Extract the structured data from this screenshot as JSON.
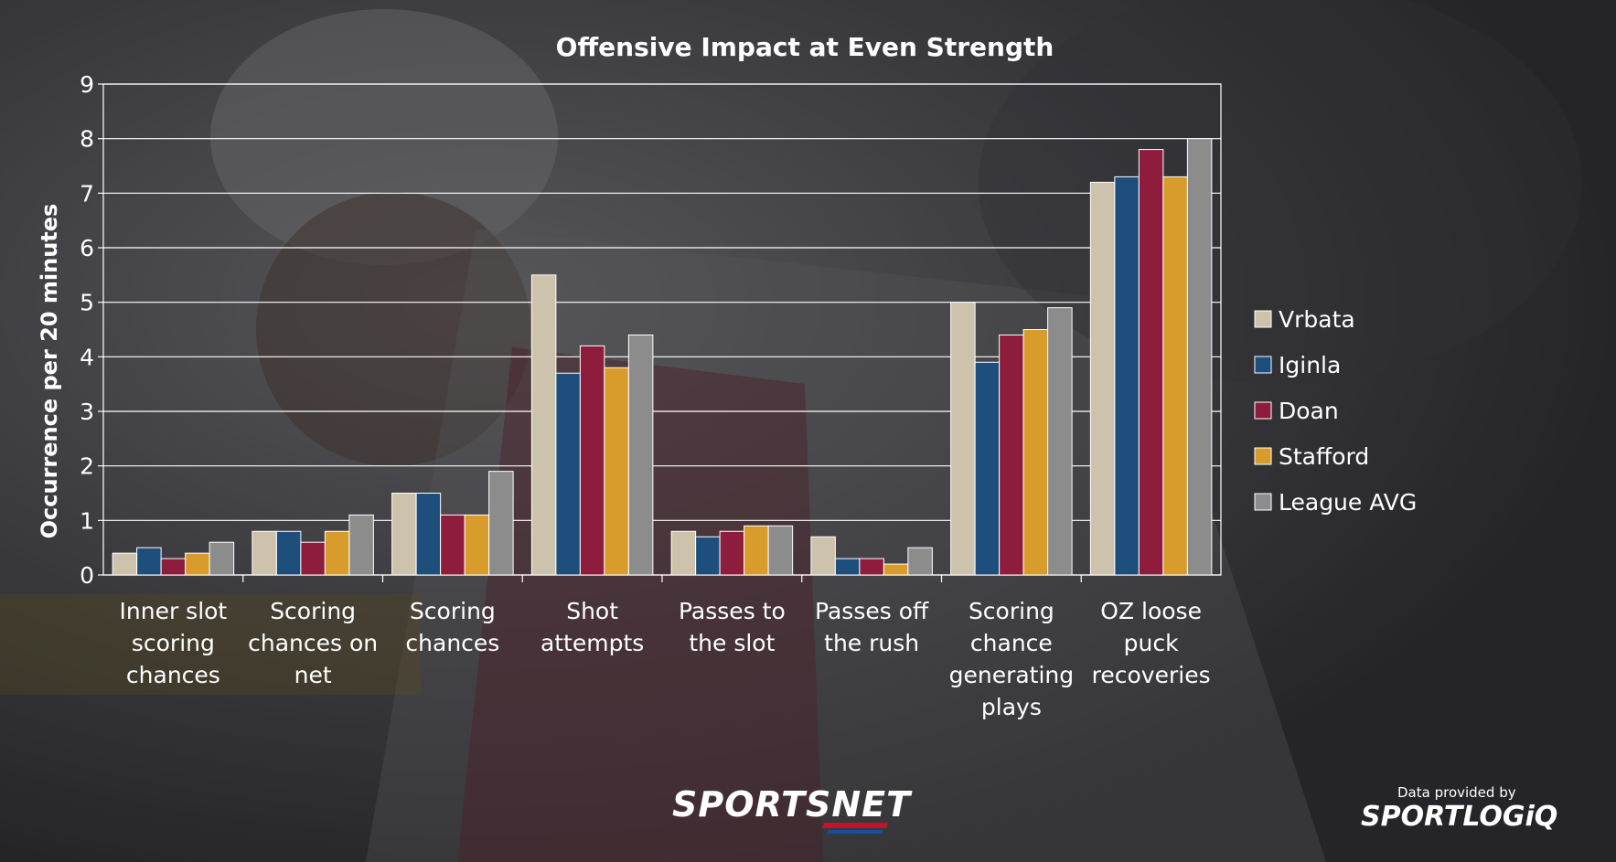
{
  "chart_data": {
    "type": "bar",
    "title": "Offensive Impact at Even Strength",
    "xlabel": "",
    "ylabel": "Occurrence per 20 minutes",
    "ylim": [
      0,
      9
    ],
    "yticks": [
      0,
      1,
      2,
      3,
      4,
      5,
      6,
      7,
      8,
      9
    ],
    "grid": true,
    "legend_position": "right",
    "categories": [
      [
        "Inner slot",
        "scoring",
        "chances"
      ],
      [
        "Scoring",
        "chances on",
        "net"
      ],
      [
        "Scoring",
        "chances"
      ],
      [
        "Shot",
        "attempts"
      ],
      [
        "Passes to",
        "the slot"
      ],
      [
        "Passes off",
        "the rush"
      ],
      [
        "Scoring",
        "chance",
        "generating",
        "plays"
      ],
      [
        "OZ loose",
        "puck",
        "recoveries"
      ]
    ],
    "series": [
      {
        "name": "Vrbata",
        "color": "#cdc3ad",
        "values": [
          0.4,
          0.8,
          1.5,
          5.5,
          0.8,
          0.7,
          5.0,
          7.2
        ]
      },
      {
        "name": "Iginla",
        "color": "#1e4f7c",
        "values": [
          0.5,
          0.8,
          1.5,
          3.7,
          0.7,
          0.3,
          3.9,
          7.3
        ]
      },
      {
        "name": "Doan",
        "color": "#8d1c3d",
        "values": [
          0.3,
          0.6,
          1.1,
          4.2,
          0.8,
          0.3,
          4.4,
          7.8
        ]
      },
      {
        "name": "Stafford",
        "color": "#d79c2b",
        "values": [
          0.4,
          0.8,
          1.1,
          3.8,
          0.9,
          0.2,
          4.5,
          7.3
        ]
      },
      {
        "name": "League AVG",
        "color": "#8c8c8c",
        "values": [
          0.6,
          1.1,
          1.9,
          4.4,
          0.9,
          0.5,
          4.9,
          8.0
        ]
      }
    ]
  },
  "branding": {
    "sportsnet_logo": "SPORTSNET",
    "provided_text": "Data provided by",
    "sportlogiq_logo": "SPORTLOGiQ"
  }
}
